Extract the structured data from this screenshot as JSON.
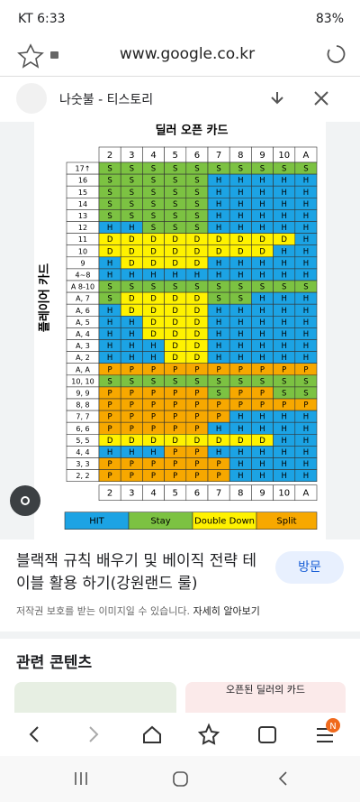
{
  "status_bar": {
    "carrier": "KT",
    "time": "6:33",
    "battery": "83%"
  },
  "browser": {
    "url": "www.google.co.kr",
    "tab_title": "나숫불 - 티스토리"
  },
  "image": {
    "title": "딜러 오픈 카드",
    "side_label": "플레이어 카드",
    "dealer_cards": [
      "2",
      "3",
      "4",
      "5",
      "6",
      "7",
      "8",
      "9",
      "10",
      "A"
    ],
    "player_hands": [
      "17↑",
      "16",
      "15",
      "14",
      "13",
      "12",
      "11",
      "10",
      "9",
      "4~8",
      "A 8-10",
      "A, 7",
      "A, 6",
      "A, 5",
      "A, 4",
      "A, 3",
      "A, 2",
      "A, A",
      "10, 10",
      "9, 9",
      "8, 8",
      "7, 7",
      "6, 6",
      "5, 5",
      "4, 4",
      "3, 3",
      "2, 2"
    ],
    "cells": [
      [
        "S",
        "S",
        "S",
        "S",
        "S",
        "S",
        "S",
        "S",
        "S",
        "S"
      ],
      [
        "S",
        "S",
        "S",
        "S",
        "S",
        "H",
        "H",
        "H",
        "H",
        "H"
      ],
      [
        "S",
        "S",
        "S",
        "S",
        "S",
        "H",
        "H",
        "H",
        "H",
        "H"
      ],
      [
        "S",
        "S",
        "S",
        "S",
        "S",
        "H",
        "H",
        "H",
        "H",
        "H"
      ],
      [
        "S",
        "S",
        "S",
        "S",
        "S",
        "H",
        "H",
        "H",
        "H",
        "H"
      ],
      [
        "H",
        "H",
        "S",
        "S",
        "S",
        "H",
        "H",
        "H",
        "H",
        "H"
      ],
      [
        "D",
        "D",
        "D",
        "D",
        "D",
        "D",
        "D",
        "D",
        "D",
        "H"
      ],
      [
        "D",
        "D",
        "D",
        "D",
        "D",
        "D",
        "D",
        "D",
        "H",
        "H"
      ],
      [
        "H",
        "D",
        "D",
        "D",
        "D",
        "H",
        "H",
        "H",
        "H",
        "H"
      ],
      [
        "H",
        "H",
        "H",
        "H",
        "H",
        "H",
        "H",
        "H",
        "H",
        "H"
      ],
      [
        "S",
        "S",
        "S",
        "S",
        "S",
        "S",
        "S",
        "S",
        "S",
        "S"
      ],
      [
        "S",
        "D",
        "D",
        "D",
        "D",
        "S",
        "S",
        "H",
        "H",
        "H"
      ],
      [
        "H",
        "D",
        "D",
        "D",
        "D",
        "H",
        "H",
        "H",
        "H",
        "H"
      ],
      [
        "H",
        "H",
        "D",
        "D",
        "D",
        "H",
        "H",
        "H",
        "H",
        "H"
      ],
      [
        "H",
        "H",
        "D",
        "D",
        "D",
        "H",
        "H",
        "H",
        "H",
        "H"
      ],
      [
        "H",
        "H",
        "H",
        "D",
        "D",
        "H",
        "H",
        "H",
        "H",
        "H"
      ],
      [
        "H",
        "H",
        "H",
        "D",
        "D",
        "H",
        "H",
        "H",
        "H",
        "H"
      ],
      [
        "P",
        "P",
        "P",
        "P",
        "P",
        "P",
        "P",
        "P",
        "P",
        "P"
      ],
      [
        "S",
        "S",
        "S",
        "S",
        "S",
        "S",
        "S",
        "S",
        "S",
        "S"
      ],
      [
        "P",
        "P",
        "P",
        "P",
        "P",
        "S",
        "P",
        "P",
        "S",
        "S"
      ],
      [
        "P",
        "P",
        "P",
        "P",
        "P",
        "P",
        "P",
        "P",
        "P",
        "P"
      ],
      [
        "P",
        "P",
        "P",
        "P",
        "P",
        "P",
        "H",
        "H",
        "H",
        "H"
      ],
      [
        "P",
        "P",
        "P",
        "P",
        "P",
        "H",
        "H",
        "H",
        "H",
        "H"
      ],
      [
        "D",
        "D",
        "D",
        "D",
        "D",
        "D",
        "D",
        "D",
        "H",
        "H"
      ],
      [
        "H",
        "H",
        "H",
        "P",
        "P",
        "H",
        "H",
        "H",
        "H",
        "H"
      ],
      [
        "P",
        "P",
        "P",
        "P",
        "P",
        "P",
        "H",
        "H",
        "H",
        "H"
      ],
      [
        "P",
        "P",
        "P",
        "P",
        "P",
        "P",
        "H",
        "H",
        "H",
        "H"
      ]
    ],
    "legend": [
      "HIT",
      "Stay",
      "Double Down",
      "Split"
    ]
  },
  "result": {
    "title": "블랙잭 규칙 배우기 및 베이직 전략 테이블 활용 하기(강원랜드 룰)",
    "visit": "방문",
    "notice": "저작권 보호를 받는 이미지일 수 있습니다.",
    "learn_more": "자세히 알아보기"
  },
  "related": {
    "heading": "관련 콘텐츠",
    "thumb_title": "오픈된 딜러의 카드"
  },
  "nav": {
    "badge": "N"
  }
}
